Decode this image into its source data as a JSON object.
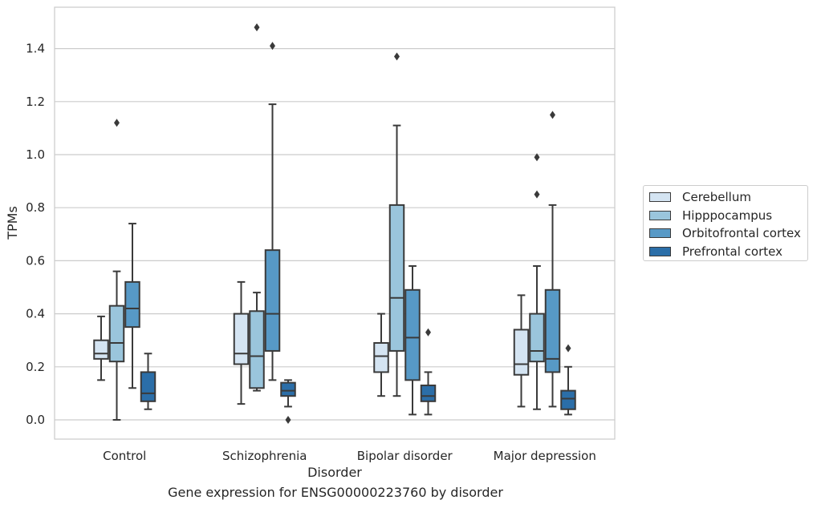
{
  "chart_data": {
    "type": "box",
    "title": "",
    "caption": "Gene expression for ENSG00000223760 by disorder",
    "xlabel": "Disorder",
    "ylabel": "TPMs",
    "ylim": [
      -0.07,
      1.56
    ],
    "yticks": [
      "0.0",
      "0.2",
      "0.4",
      "0.6",
      "0.8",
      "1.0",
      "1.2",
      "1.4"
    ],
    "grid": "horizontal",
    "legend_position": "right",
    "categories": [
      "Control",
      "Schizophrenia",
      "Bipolar disorder",
      "Major depression"
    ],
    "series": [
      {
        "name": "Cerebellum",
        "color": "#d4e4f2",
        "boxes": [
          {
            "whislo": 0.15,
            "q1": 0.23,
            "median": 0.25,
            "q3": 0.3,
            "whishi": 0.39,
            "fliers": []
          },
          {
            "whislo": 0.06,
            "q1": 0.21,
            "median": 0.25,
            "q3": 0.4,
            "whishi": 0.52,
            "fliers": []
          },
          {
            "whislo": 0.09,
            "q1": 0.18,
            "median": 0.24,
            "q3": 0.29,
            "whishi": 0.4,
            "fliers": []
          },
          {
            "whislo": 0.05,
            "q1": 0.17,
            "median": 0.21,
            "q3": 0.34,
            "whishi": 0.47,
            "fliers": []
          }
        ]
      },
      {
        "name": "Hipppocampus",
        "color": "#9ac5dc",
        "boxes": [
          {
            "whislo": 0.0,
            "q1": 0.22,
            "median": 0.29,
            "q3": 0.43,
            "whishi": 0.56,
            "fliers": [
              1.12
            ]
          },
          {
            "whislo": 0.11,
            "q1": 0.12,
            "median": 0.24,
            "q3": 0.41,
            "whishi": 0.48,
            "fliers": [
              1.48
            ]
          },
          {
            "whislo": 0.09,
            "q1": 0.26,
            "median": 0.46,
            "q3": 0.81,
            "whishi": 1.11,
            "fliers": [
              1.37
            ]
          },
          {
            "whislo": 0.04,
            "q1": 0.22,
            "median": 0.26,
            "q3": 0.4,
            "whishi": 0.58,
            "fliers": [
              0.85,
              0.99
            ]
          }
        ]
      },
      {
        "name": "Orbitofrontal cortex",
        "color": "#5799c6",
        "boxes": [
          {
            "whislo": 0.12,
            "q1": 0.35,
            "median": 0.42,
            "q3": 0.52,
            "whishi": 0.74,
            "fliers": []
          },
          {
            "whislo": 0.15,
            "q1": 0.26,
            "median": 0.4,
            "q3": 0.64,
            "whishi": 1.19,
            "fliers": [
              1.41
            ]
          },
          {
            "whislo": 0.02,
            "q1": 0.15,
            "median": 0.31,
            "q3": 0.49,
            "whishi": 0.58,
            "fliers": []
          },
          {
            "whislo": 0.05,
            "q1": 0.18,
            "median": 0.23,
            "q3": 0.49,
            "whishi": 0.81,
            "fliers": [
              1.15
            ]
          }
        ]
      },
      {
        "name": "Prefrontal cortex",
        "color": "#2b6ea8",
        "boxes": [
          {
            "whislo": 0.04,
            "q1": 0.07,
            "median": 0.1,
            "q3": 0.18,
            "whishi": 0.25,
            "fliers": []
          },
          {
            "whislo": 0.05,
            "q1": 0.09,
            "median": 0.11,
            "q3": 0.14,
            "whishi": 0.15,
            "fliers": [
              0.0
            ]
          },
          {
            "whislo": 0.02,
            "q1": 0.07,
            "median": 0.09,
            "q3": 0.13,
            "whishi": 0.18,
            "fliers": [
              0.33
            ]
          },
          {
            "whislo": 0.02,
            "q1": 0.04,
            "median": 0.08,
            "q3": 0.11,
            "whishi": 0.2,
            "fliers": [
              0.27
            ]
          }
        ]
      }
    ]
  }
}
